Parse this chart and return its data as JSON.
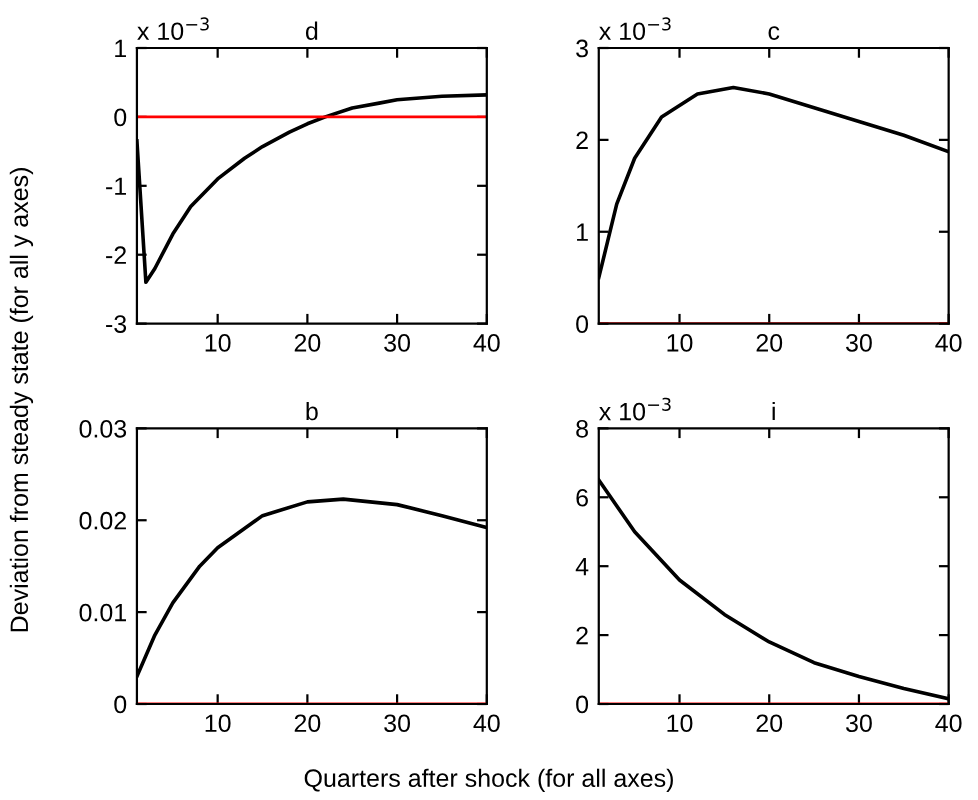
{
  "chart_data": [
    {
      "type": "line",
      "title": "d",
      "xlabel": "Quarters after shock (for all axes)",
      "ylabel": "Deviation from steady state (for all y axes)",
      "annotations": [
        "x 10$^{−3}$"
      ],
      "x": [
        1,
        2,
        3,
        5,
        7,
        10,
        13,
        15,
        18,
        20,
        22,
        25,
        28,
        30,
        35,
        40
      ],
      "series": [
        {
          "color": "#000000",
          "values": [
            -0.35,
            -2.4,
            -2.2,
            -1.7,
            -1.3,
            -0.9,
            -0.6,
            -0.43,
            -0.22,
            -0.1,
            0.0,
            0.13,
            0.2,
            0.25,
            0.3,
            0.32
          ]
        }
      ],
      "ref_lines": [
        {
          "axis": "y",
          "value": 0,
          "color": "#ff0000"
        }
      ],
      "xlim": [
        1,
        40
      ],
      "xticks": [
        10,
        20,
        30,
        40
      ],
      "ylim": [
        -3,
        1
      ],
      "yticks": [
        -3,
        -2,
        -1,
        0,
        1
      ]
    },
    {
      "type": "line",
      "title": "c",
      "annotations": [
        "x 10$^{−3}$"
      ],
      "x": [
        1,
        2,
        3,
        5,
        8,
        12,
        16,
        20,
        25,
        30,
        35,
        40
      ],
      "series": [
        {
          "color": "#000000",
          "values": [
            0.5,
            0.9,
            1.3,
            1.8,
            2.25,
            2.5,
            2.57,
            2.5,
            2.35,
            2.2,
            2.05,
            1.87
          ]
        }
      ],
      "ref_lines": [
        {
          "axis": "y",
          "value": 0,
          "color": "#ff0000"
        }
      ],
      "xlim": [
        1,
        40
      ],
      "xticks": [
        10,
        20,
        30,
        40
      ],
      "ylim": [
        0,
        3
      ],
      "yticks": [
        0,
        1,
        2,
        3
      ]
    },
    {
      "type": "line",
      "title": "b",
      "x": [
        1,
        3,
        5,
        8,
        10,
        15,
        20,
        24,
        30,
        35,
        40
      ],
      "series": [
        {
          "color": "#000000",
          "values": [
            0.003,
            0.0075,
            0.011,
            0.015,
            0.017,
            0.0205,
            0.022,
            0.0223,
            0.0217,
            0.0205,
            0.0192
          ]
        }
      ],
      "ref_lines": [
        {
          "axis": "y",
          "value": 0,
          "color": "#ff0000"
        }
      ],
      "xlim": [
        1,
        40
      ],
      "xticks": [
        10,
        20,
        30,
        40
      ],
      "ylim": [
        0,
        0.03
      ],
      "yticks": [
        0,
        0.01,
        0.02,
        0.03
      ]
    },
    {
      "type": "line",
      "title": "i",
      "annotations": [
        "x 10$^{−3}$"
      ],
      "x": [
        1,
        5,
        10,
        15,
        20,
        25,
        30,
        35,
        40
      ],
      "series": [
        {
          "color": "#000000",
          "values": [
            6.5,
            5.0,
            3.6,
            2.6,
            1.8,
            1.2,
            0.8,
            0.45,
            0.15
          ]
        }
      ],
      "ref_lines": [
        {
          "axis": "y",
          "value": 0,
          "color": "#ff0000"
        }
      ],
      "xlim": [
        1,
        40
      ],
      "xticks": [
        10,
        20,
        30,
        40
      ],
      "ylim": [
        0,
        8
      ],
      "yticks": [
        0,
        2,
        4,
        6,
        8
      ]
    }
  ]
}
